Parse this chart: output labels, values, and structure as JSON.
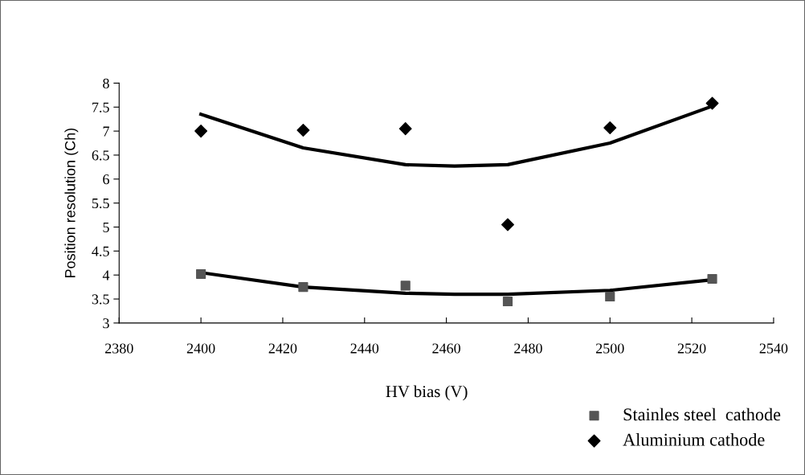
{
  "chart_data": {
    "type": "scatter",
    "xlabel": "HV bias (V)",
    "ylabel": "Position resolution (Ch)",
    "x": [
      2400,
      2425,
      2450,
      2475,
      2500,
      2525
    ],
    "series": [
      {
        "name": "Stainles steel  cathode",
        "color": "#555555",
        "marker": "square",
        "values": [
          4.02,
          3.75,
          3.78,
          3.45,
          3.55,
          3.92
        ]
      },
      {
        "name": "Aluminium cathode",
        "color": "#000000",
        "marker": "diamond",
        "values": [
          7.0,
          7.02,
          7.05,
          5.05,
          7.07,
          7.58
        ]
      },
      {
        "type": "line",
        "color": "#000000",
        "marker": "none",
        "x": [
          2400,
          2425,
          2450,
          2462,
          2475,
          2500,
          2525
        ],
        "values": [
          7.35,
          6.65,
          6.3,
          6.27,
          6.3,
          6.75,
          7.52
        ]
      },
      {
        "type": "line",
        "color": "#000000",
        "marker": "none",
        "x": [
          2400,
          2425,
          2450,
          2462,
          2475,
          2500,
          2525
        ],
        "values": [
          4.05,
          3.75,
          3.62,
          3.6,
          3.6,
          3.68,
          3.9
        ]
      }
    ],
    "xlim": [
      2380,
      2540
    ],
    "xticks": [
      2380,
      2400,
      2420,
      2440,
      2460,
      2480,
      2500,
      2520,
      2540
    ],
    "ylim": [
      3,
      8
    ],
    "yticks": [
      3,
      3.5,
      4,
      4.5,
      5,
      5.5,
      6,
      6.5,
      7,
      7.5,
      8
    ],
    "grid": false,
    "legend": "bottom right"
  }
}
